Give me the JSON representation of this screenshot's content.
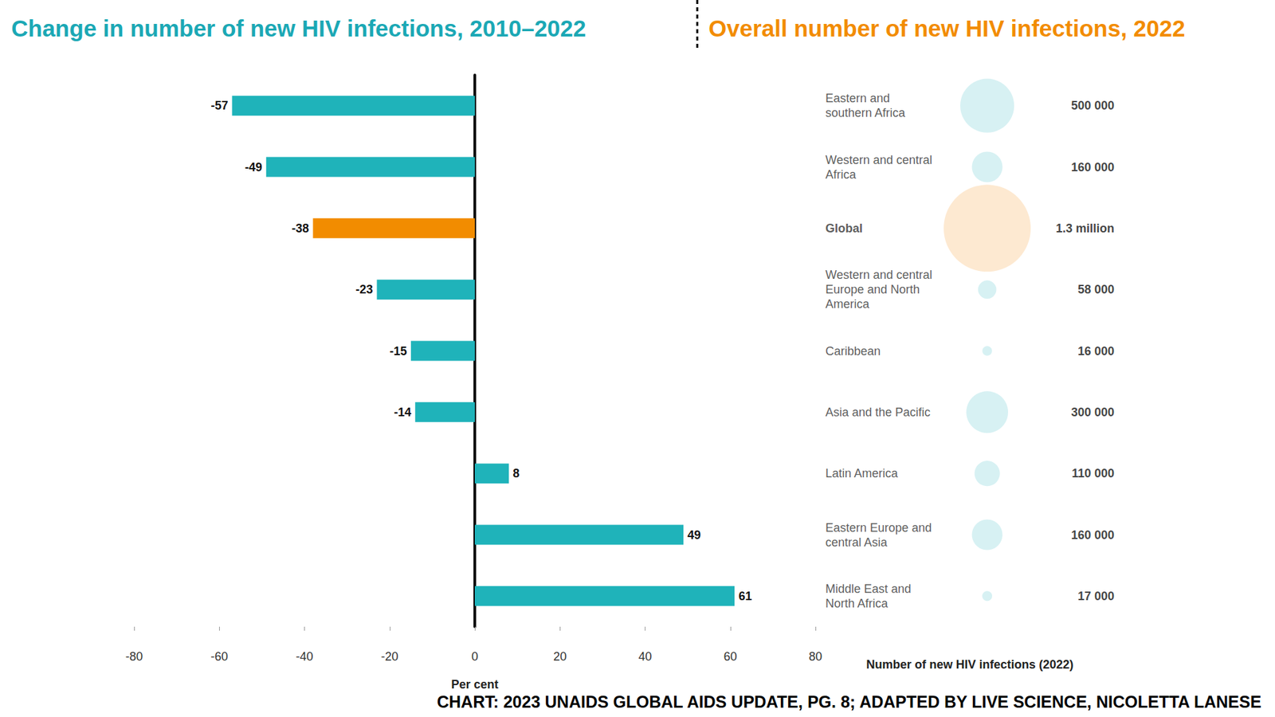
{
  "chart_data": [
    {
      "type": "bar",
      "title": "Change in number of new HIV infections, 2010–2022",
      "orientation": "horizontal",
      "categories": [
        "Eastern and southern Africa",
        "Western and central Africa",
        "Global",
        "Western and central Europe and North America",
        "Caribbean",
        "Asia and the Pacific",
        "Latin America",
        "Eastern Europe and central Asia",
        "Middle East and North Africa"
      ],
      "values": [
        -57,
        -49,
        -38,
        -23,
        -15,
        -14,
        8,
        49,
        61
      ],
      "colors": [
        "#1fb3ba",
        "#1fb3ba",
        "#f28c00",
        "#1fb3ba",
        "#1fb3ba",
        "#1fb3ba",
        "#1fb3ba",
        "#1fb3ba",
        "#1fb3ba"
      ],
      "xlabel": "Per cent",
      "xlim": [
        -80,
        80
      ],
      "xticks": [
        -80,
        -60,
        -40,
        -20,
        0,
        20,
        40,
        60,
        80
      ],
      "data_labels": true,
      "tick_labels": "x",
      "grid": false,
      "annotations": [
        "CHART: 2023 UNAIDS GLOBAL AIDS UPDATE, PG. 8; ADAPTED BY LIVE SCIENCE, NICOLETTA LANESE"
      ]
    },
    {
      "type": "scatter",
      "title": "Overall number of new HIV infections, 2022",
      "categories": [
        "Eastern and southern Africa",
        "Western and central Africa",
        "Global",
        "Western and central Europe and North America",
        "Caribbean",
        "Asia and the Pacific",
        "Latin America",
        "Eastern Europe and central Asia",
        "Middle East and North Africa"
      ],
      "values": [
        500000,
        160000,
        1300000,
        58000,
        16000,
        300000,
        110000,
        160000,
        17000
      ],
      "value_labels": [
        "500 000",
        "160 000",
        "1.3 million",
        "58 000",
        "16 000",
        "300 000",
        "110 000",
        "160 000",
        "17 000"
      ],
      "colors": [
        "#cdeef0",
        "#cdeef0",
        "#fde3c6",
        "#cdeef0",
        "#cdeef0",
        "#cdeef0",
        "#cdeef0",
        "#cdeef0",
        "#cdeef0"
      ],
      "xlabel": "Number of new HIV infections (2022)",
      "marker": "circle",
      "data_labels": true,
      "tick_labels": false,
      "grid": false
    }
  ]
}
